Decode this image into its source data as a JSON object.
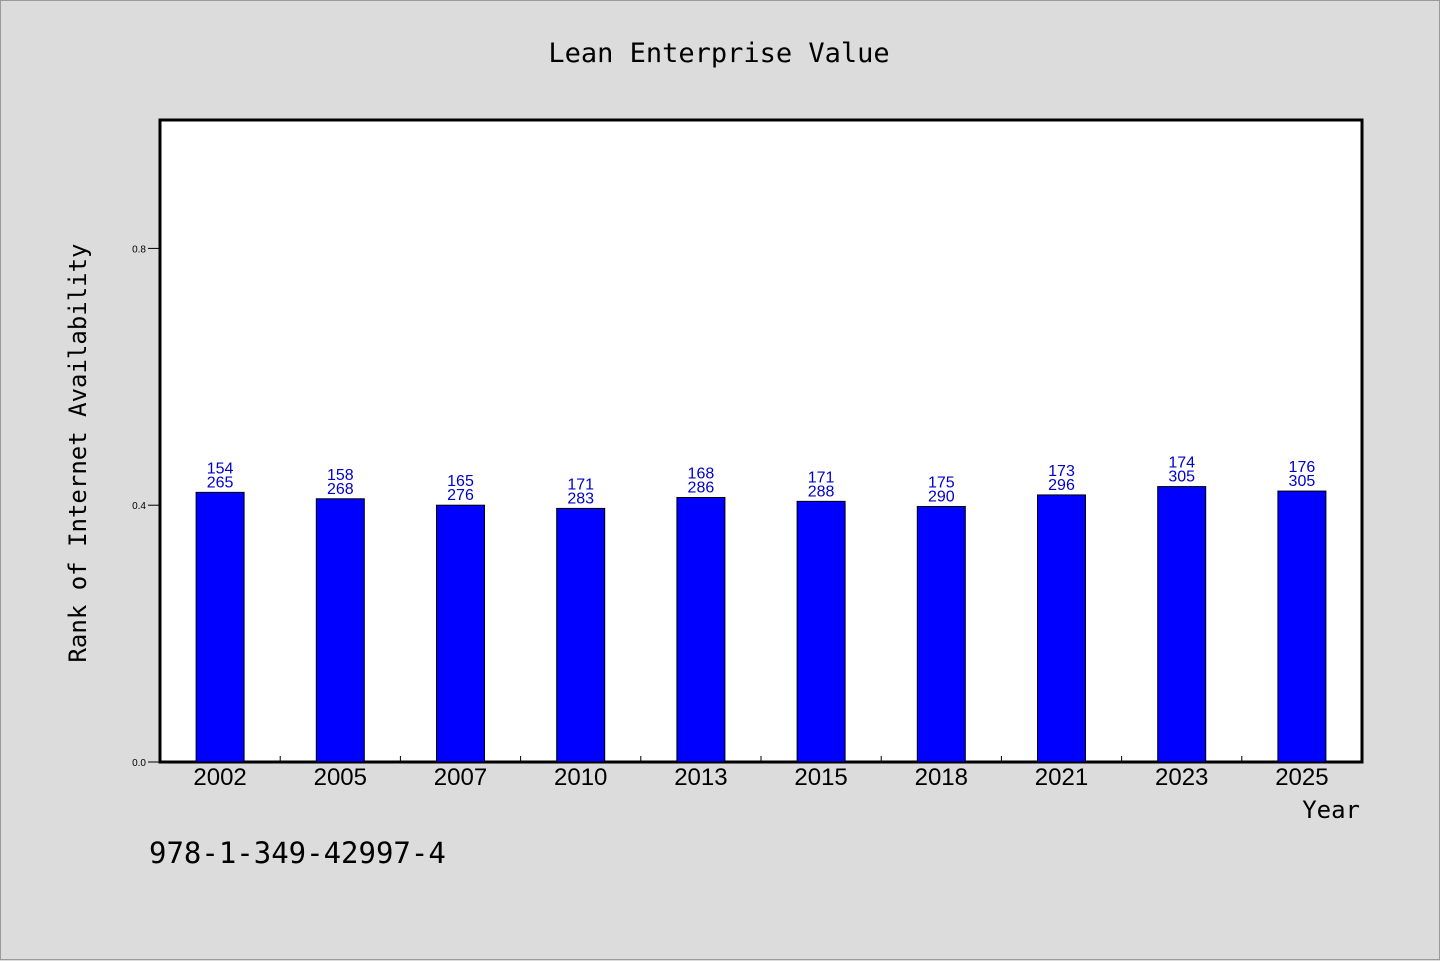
{
  "chart_data": {
    "type": "bar",
    "title": "Lean Enterprise Value",
    "xlabel": "Year",
    "ylabel": "Rank of Internet Availability",
    "categories": [
      "2002",
      "2005",
      "2007",
      "2010",
      "2013",
      "2015",
      "2018",
      "2021",
      "2023",
      "2025"
    ],
    "values": [
      0.42,
      0.41,
      0.4,
      0.395,
      0.412,
      0.406,
      0.398,
      0.416,
      0.429,
      0.422
    ],
    "labels_top": [
      "154",
      "158",
      "165",
      "171",
      "168",
      "171",
      "175",
      "173",
      "174",
      "176"
    ],
    "labels_bottom": [
      "265",
      "268",
      "276",
      "283",
      "286",
      "288",
      "290",
      "296",
      "305",
      "305"
    ],
    "ylim": [
      0,
      1.0
    ],
    "yticks": [
      "0.0",
      "0.4",
      "0.8"
    ],
    "bar_color": "#0000ff",
    "label_color": "#0000cc",
    "grid": false
  },
  "footer": {
    "isbn": "978-1-349-42997-4"
  }
}
